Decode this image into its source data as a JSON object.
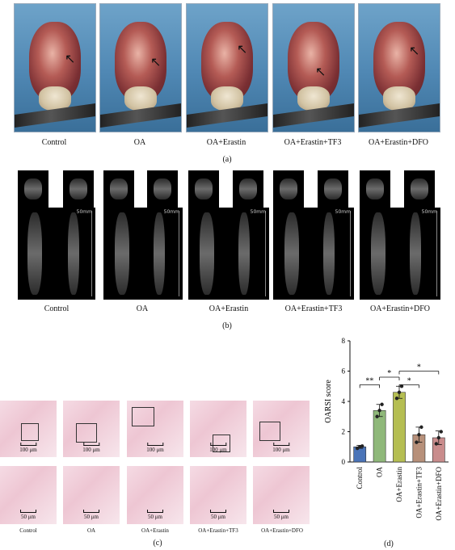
{
  "panel_a": {
    "labels": [
      "Control",
      "OA",
      "OA+Erastin",
      "OA+Erastin+TF3",
      "OA+Erastin+DFO"
    ],
    "caption": "(a)"
  },
  "panel_b": {
    "labels": [
      "Control",
      "OA",
      "OA+Erastin",
      "OA+Erastin+TF3",
      "OA+Erastin+DFO"
    ],
    "scale_label": "50mm",
    "caption": "(b)"
  },
  "panel_c": {
    "labels": [
      "Control",
      "OA",
      "OA+Erastin",
      "OA+Erastin+TF3",
      "OA+Erastin+DFO"
    ],
    "scale_top": "100 μm",
    "scale_bottom": "50 μm",
    "caption": "(c)"
  },
  "panel_d": {
    "caption": "(d)"
  },
  "chart_data": {
    "type": "bar",
    "categories": [
      "Control",
      "OA",
      "OA+Erastin",
      "OA+Erastin+TF3",
      "OA+Erastin+DFO"
    ],
    "values": [
      1.0,
      3.4,
      4.6,
      1.8,
      1.6
    ],
    "errors": [
      0.1,
      0.4,
      0.4,
      0.5,
      0.45
    ],
    "points": [
      [
        0.9,
        1.0,
        1.05
      ],
      [
        3.0,
        3.4,
        3.8
      ],
      [
        4.2,
        4.6,
        5.0
      ],
      [
        1.3,
        1.8,
        2.3
      ],
      [
        1.2,
        1.6,
        2.0
      ]
    ],
    "colors": [
      "#4a74b8",
      "#8fb87a",
      "#b5be52",
      "#b7907a",
      "#c98c8c"
    ],
    "ylabel": "OARSI score",
    "ylim": [
      0,
      8
    ],
    "yticks": [
      "0",
      "2",
      "4",
      "6",
      "8"
    ],
    "significance": [
      {
        "from": 0,
        "to": 1,
        "label": "**"
      },
      {
        "from": 1,
        "to": 2,
        "label": "*"
      },
      {
        "from": 2,
        "to": 3,
        "label": "*"
      },
      {
        "from": 2,
        "to": 4,
        "label": "*"
      }
    ]
  }
}
